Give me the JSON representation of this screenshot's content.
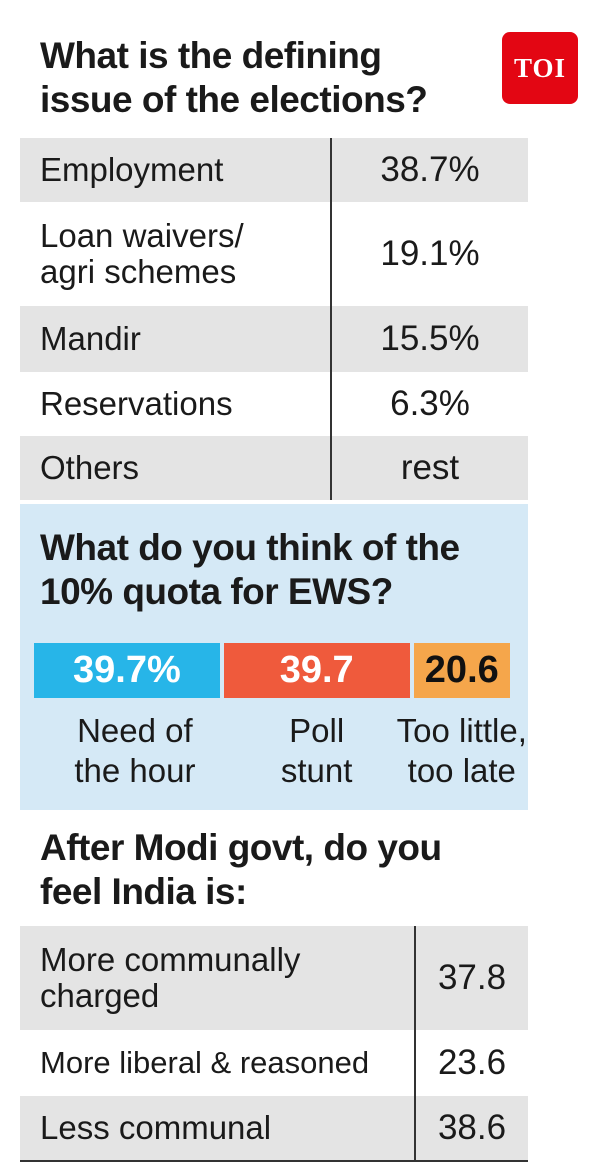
{
  "brand": "TOI",
  "section1": {
    "title": "What is the defining\nissue of the elections?",
    "rows": [
      {
        "label": "Employment",
        "value": "38.7%"
      },
      {
        "label": "Loan waivers/\nagri schemes",
        "value": "19.1%"
      },
      {
        "label": "Mandir",
        "value": "15.5%"
      },
      {
        "label": "Reservations",
        "value": "6.3%"
      },
      {
        "label": "Others",
        "value": "rest"
      }
    ]
  },
  "section2": {
    "title": "What do you think of the\n10% quota for EWS?",
    "labels": [
      "Need of\nthe hour",
      "Poll\nstunt",
      "Too little,\ntoo late"
    ],
    "value_texts": [
      "39.7%",
      "39.7",
      "20.6"
    ]
  },
  "section3": {
    "title": "After Modi govt, do you\nfeel India is:",
    "rows": [
      {
        "label": "More communally\ncharged",
        "value": "37.8"
      },
      {
        "label": "More liberal & reasoned",
        "value": "23.6"
      },
      {
        "label": "Less communal",
        "value": "38.6"
      }
    ]
  },
  "chart_data": {
    "type": "bar",
    "stacked": true,
    "categories": [
      "Need of the hour",
      "Poll stunt",
      "Too little, too late"
    ],
    "values": [
      39.7,
      39.7,
      20.6
    ],
    "colors": [
      "#27b5e8",
      "#ef5a3c",
      "#f5a64b"
    ]
  }
}
